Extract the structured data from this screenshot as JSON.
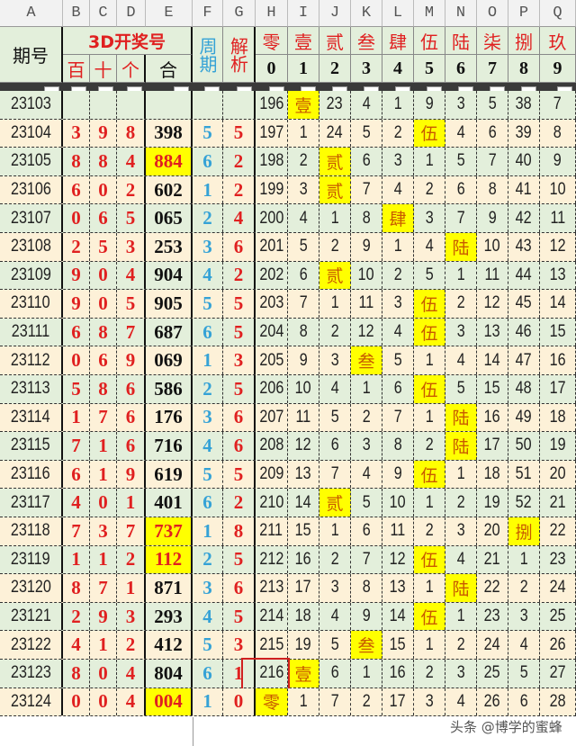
{
  "columns": [
    "A",
    "B",
    "C",
    "D",
    "E",
    "F",
    "G",
    "H",
    "I",
    "J",
    "K",
    "L",
    "M",
    "N",
    "O",
    "P",
    "Q"
  ],
  "header": {
    "issue": "期号",
    "draw_group": "3D开奖号",
    "hundreds": "百",
    "tens": "十",
    "ones": "个",
    "combined": "合",
    "cycle": "周期",
    "analysis": "解析",
    "digit_names": [
      "零",
      "壹",
      "贰",
      "叁",
      "肆",
      "伍",
      "陆",
      "柒",
      "捌",
      "玖"
    ],
    "digits": [
      "0",
      "1",
      "2",
      "3",
      "4",
      "5",
      "6",
      "7",
      "8",
      "9"
    ]
  },
  "colors": {
    "row_a": "#fdf1d8",
    "row_b": "#e3efdb",
    "highlight": "#ffff00",
    "digit_red": "#e02020",
    "cycle_blue": "#35a2d6",
    "annotation_box": "#d02020"
  },
  "rows": [
    {
      "issue": "23103",
      "b": "",
      "c": "",
      "d": "",
      "e": "",
      "e_hl": false,
      "f": "",
      "g": "",
      "gaps": [
        "196",
        "壹",
        "23",
        "4",
        "1",
        "9",
        "3",
        "5",
        "38",
        "7"
      ]
    },
    {
      "issue": "23104",
      "b": "3",
      "c": "9",
      "d": "8",
      "e": "398",
      "e_hl": false,
      "f": "5",
      "g": "5",
      "gaps": [
        "197",
        "1",
        "24",
        "5",
        "2",
        "伍",
        "4",
        "6",
        "39",
        "8"
      ]
    },
    {
      "issue": "23105",
      "b": "8",
      "c": "8",
      "d": "4",
      "e": "884",
      "e_hl": true,
      "f": "6",
      "g": "2",
      "gaps": [
        "198",
        "2",
        "贰",
        "6",
        "3",
        "1",
        "5",
        "7",
        "40",
        "9"
      ]
    },
    {
      "issue": "23106",
      "b": "6",
      "c": "0",
      "d": "2",
      "e": "602",
      "e_hl": false,
      "f": "1",
      "g": "2",
      "gaps": [
        "199",
        "3",
        "贰",
        "7",
        "4",
        "2",
        "6",
        "8",
        "41",
        "10"
      ]
    },
    {
      "issue": "23107",
      "b": "0",
      "c": "6",
      "d": "5",
      "e": "065",
      "e_hl": false,
      "f": "2",
      "g": "4",
      "gaps": [
        "200",
        "4",
        "1",
        "8",
        "肆",
        "3",
        "7",
        "9",
        "42",
        "11"
      ]
    },
    {
      "issue": "23108",
      "b": "2",
      "c": "5",
      "d": "3",
      "e": "253",
      "e_hl": false,
      "f": "3",
      "g": "6",
      "gaps": [
        "201",
        "5",
        "2",
        "9",
        "1",
        "4",
        "陆",
        "10",
        "43",
        "12"
      ]
    },
    {
      "issue": "23109",
      "b": "9",
      "c": "0",
      "d": "4",
      "e": "904",
      "e_hl": false,
      "f": "4",
      "g": "2",
      "gaps": [
        "202",
        "6",
        "贰",
        "10",
        "2",
        "5",
        "1",
        "11",
        "44",
        "13"
      ]
    },
    {
      "issue": "23110",
      "b": "9",
      "c": "0",
      "d": "5",
      "e": "905",
      "e_hl": false,
      "f": "5",
      "g": "5",
      "gaps": [
        "203",
        "7",
        "1",
        "11",
        "3",
        "伍",
        "2",
        "12",
        "45",
        "14"
      ]
    },
    {
      "issue": "23111",
      "b": "6",
      "c": "8",
      "d": "7",
      "e": "687",
      "e_hl": false,
      "f": "6",
      "g": "5",
      "gaps": [
        "204",
        "8",
        "2",
        "12",
        "4",
        "伍",
        "3",
        "13",
        "46",
        "15"
      ]
    },
    {
      "issue": "23112",
      "b": "0",
      "c": "6",
      "d": "9",
      "e": "069",
      "e_hl": false,
      "f": "1",
      "g": "3",
      "gaps": [
        "205",
        "9",
        "3",
        "叁",
        "5",
        "1",
        "4",
        "14",
        "47",
        "16"
      ]
    },
    {
      "issue": "23113",
      "b": "5",
      "c": "8",
      "d": "6",
      "e": "586",
      "e_hl": false,
      "f": "2",
      "g": "5",
      "gaps": [
        "206",
        "10",
        "4",
        "1",
        "6",
        "伍",
        "5",
        "15",
        "48",
        "17"
      ]
    },
    {
      "issue": "23114",
      "b": "1",
      "c": "7",
      "d": "6",
      "e": "176",
      "e_hl": false,
      "f": "3",
      "g": "6",
      "gaps": [
        "207",
        "11",
        "5",
        "2",
        "7",
        "1",
        "陆",
        "16",
        "49",
        "18"
      ]
    },
    {
      "issue": "23115",
      "b": "7",
      "c": "1",
      "d": "6",
      "e": "716",
      "e_hl": false,
      "f": "4",
      "g": "6",
      "gaps": [
        "208",
        "12",
        "6",
        "3",
        "8",
        "2",
        "陆",
        "17",
        "50",
        "19"
      ]
    },
    {
      "issue": "23116",
      "b": "6",
      "c": "1",
      "d": "9",
      "e": "619",
      "e_hl": false,
      "f": "5",
      "g": "5",
      "gaps": [
        "209",
        "13",
        "7",
        "4",
        "9",
        "伍",
        "1",
        "18",
        "51",
        "20"
      ]
    },
    {
      "issue": "23117",
      "b": "4",
      "c": "0",
      "d": "1",
      "e": "401",
      "e_hl": false,
      "f": "6",
      "g": "2",
      "gaps": [
        "210",
        "14",
        "贰",
        "5",
        "10",
        "1",
        "2",
        "19",
        "52",
        "21"
      ]
    },
    {
      "issue": "23118",
      "b": "7",
      "c": "3",
      "d": "7",
      "e": "737",
      "e_hl": true,
      "f": "1",
      "g": "8",
      "gaps": [
        "211",
        "15",
        "1",
        "6",
        "11",
        "2",
        "3",
        "20",
        "捌",
        "22"
      ]
    },
    {
      "issue": "23119",
      "b": "1",
      "c": "1",
      "d": "2",
      "e": "112",
      "e_hl": true,
      "f": "2",
      "g": "5",
      "gaps": [
        "212",
        "16",
        "2",
        "7",
        "12",
        "伍",
        "4",
        "21",
        "1",
        "23"
      ]
    },
    {
      "issue": "23120",
      "b": "8",
      "c": "7",
      "d": "1",
      "e": "871",
      "e_hl": false,
      "f": "3",
      "g": "6",
      "gaps": [
        "213",
        "17",
        "3",
        "8",
        "13",
        "1",
        "陆",
        "22",
        "2",
        "24"
      ]
    },
    {
      "issue": "23121",
      "b": "2",
      "c": "9",
      "d": "3",
      "e": "293",
      "e_hl": false,
      "f": "4",
      "g": "5",
      "gaps": [
        "214",
        "18",
        "4",
        "9",
        "14",
        "伍",
        "1",
        "23",
        "3",
        "25"
      ]
    },
    {
      "issue": "23122",
      "b": "4",
      "c": "1",
      "d": "2",
      "e": "412",
      "e_hl": false,
      "f": "5",
      "g": "3",
      "gaps": [
        "215",
        "19",
        "5",
        "叁",
        "15",
        "1",
        "2",
        "24",
        "4",
        "26"
      ]
    },
    {
      "issue": "23123",
      "b": "8",
      "c": "0",
      "d": "4",
      "e": "804",
      "e_hl": false,
      "f": "6",
      "g": "1",
      "gaps": [
        "216",
        "壹",
        "6",
        "1",
        "16",
        "2",
        "3",
        "25",
        "5",
        "27"
      ]
    },
    {
      "issue": "23124",
      "b": "0",
      "c": "0",
      "d": "4",
      "e": "004",
      "e_hl": true,
      "f": "1",
      "g": "0",
      "gaps": [
        "零",
        "1",
        "7",
        "2",
        "17",
        "3",
        "4",
        "26",
        "6",
        "28"
      ]
    }
  ],
  "boxed_cell": {
    "issue": "23123",
    "column": "H"
  },
  "watermark": "头条 @博学的蜜蜂"
}
